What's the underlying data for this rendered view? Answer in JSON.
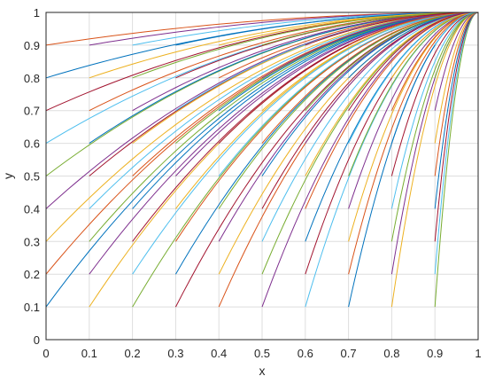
{
  "chart_data": {
    "type": "line",
    "xlabel": "x",
    "ylabel": "y",
    "xlim": [
      0,
      1
    ],
    "ylim": [
      0,
      1
    ],
    "xticks": [
      "0",
      "0.1",
      "0.2",
      "0.3",
      "0.4",
      "0.5",
      "0.6",
      "0.7",
      "0.8",
      "0.9",
      "1"
    ],
    "yticks": [
      "0",
      "0.1",
      "0.2",
      "0.3",
      "0.4",
      "0.5",
      "0.6",
      "0.7",
      "0.8",
      "0.9",
      "1"
    ],
    "grid": true,
    "legend": "none",
    "series_description": "family of curves from starting points (x0, y0) on the 0.1 grid (x0 in 0..0.9, y0 in 0.1..0.9), each rising to the common point (1, 1)",
    "end_point": [
      1,
      1
    ],
    "start_x": [
      0,
      0.1,
      0.2,
      0.3,
      0.4,
      0.5,
      0.6,
      0.7,
      0.8,
      0.9
    ],
    "start_y": [
      0.1,
      0.2,
      0.3,
      0.4,
      0.5,
      0.6,
      0.7,
      0.8,
      0.9
    ],
    "colors": [
      "#0072BD",
      "#D95319",
      "#EDB120",
      "#7E2F8E",
      "#77AC30",
      "#4DBEEE",
      "#A2142F"
    ]
  }
}
